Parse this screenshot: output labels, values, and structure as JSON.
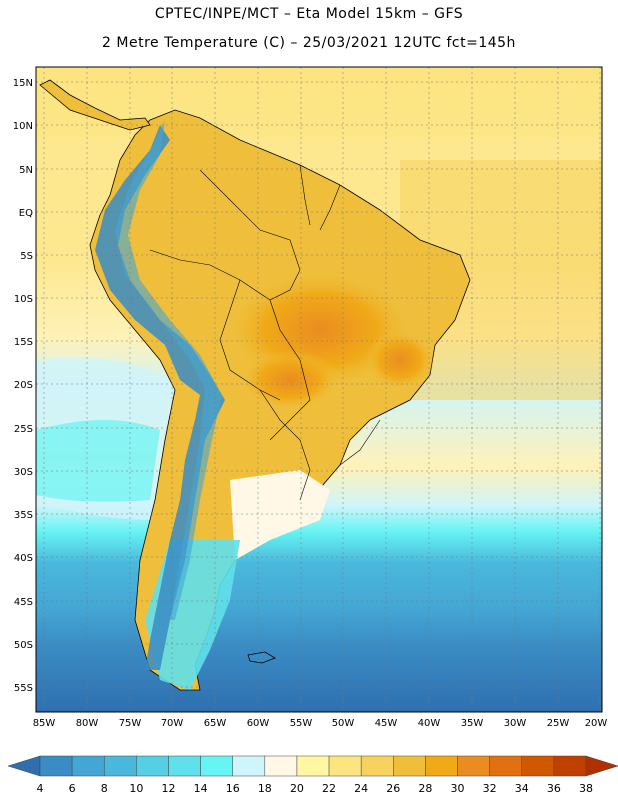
{
  "header": {
    "line1": "CPTEC/INPE/MCT –  Eta Model 15km – GFS",
    "line2": "2 Metre Temperature (C) – 25/03/2021 12UTC fct=145h"
  },
  "map": {
    "lat_labels": [
      "15N",
      "10N",
      "5N",
      "EQ",
      "5S",
      "10S",
      "15S",
      "20S",
      "25S",
      "30S",
      "35S",
      "40S",
      "45S",
      "50S",
      "55S"
    ],
    "lon_labels": [
      "85W",
      "80W",
      "75W",
      "70W",
      "65W",
      "60W",
      "55W",
      "50W",
      "45W",
      "40W",
      "35W",
      "30W",
      "25W",
      "20W"
    ]
  },
  "colorbar": {
    "labels": [
      "4",
      "6",
      "8",
      "10",
      "12",
      "14",
      "16",
      "18",
      "20",
      "22",
      "24",
      "26",
      "28",
      "30",
      "32",
      "34",
      "36",
      "38"
    ],
    "colors": [
      "#2f6fb0",
      "#3a8cc4",
      "#44a6d4",
      "#4ab8dc",
      "#55cfe4",
      "#5fe0ea",
      "#66f4f4",
      "#cff4fa",
      "#fff8e6",
      "#fff8a0",
      "#fce580",
      "#f7d25e",
      "#efbf3c",
      "#f0aa18",
      "#ea8c20",
      "#e07010",
      "#d05800",
      "#c04000",
      "#b03000"
    ]
  }
}
